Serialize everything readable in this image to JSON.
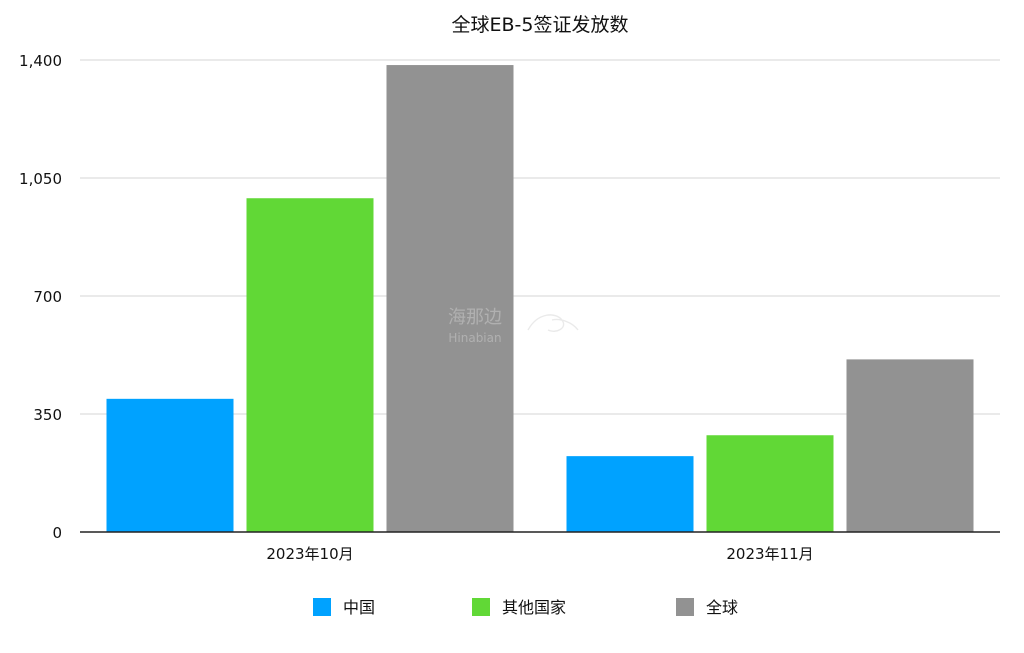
{
  "chart_data": {
    "type": "bar",
    "title": "全球EB-5签证发放数",
    "categories": [
      "2023年10月",
      "2023年11月"
    ],
    "series": [
      {
        "name": "中国",
        "color": "#00A2FF",
        "values": [
          395,
          225
        ]
      },
      {
        "name": "其他国家",
        "color": "#61D836",
        "values": [
          990,
          287
        ]
      },
      {
        "name": "全球",
        "color": "#929292",
        "values": [
          1385,
          512
        ]
      }
    ],
    "ylim": [
      0,
      1400
    ],
    "yticks": [
      0,
      350,
      700,
      1050,
      1400
    ],
    "ytick_labels": [
      "0",
      "350",
      "700",
      "1,050",
      "1,400"
    ],
    "xlabel": "",
    "ylabel": "",
    "grid": true,
    "legend_position": "bottom"
  },
  "watermark": {
    "text_cn": "海那边",
    "text_en": "Hinabian"
  }
}
